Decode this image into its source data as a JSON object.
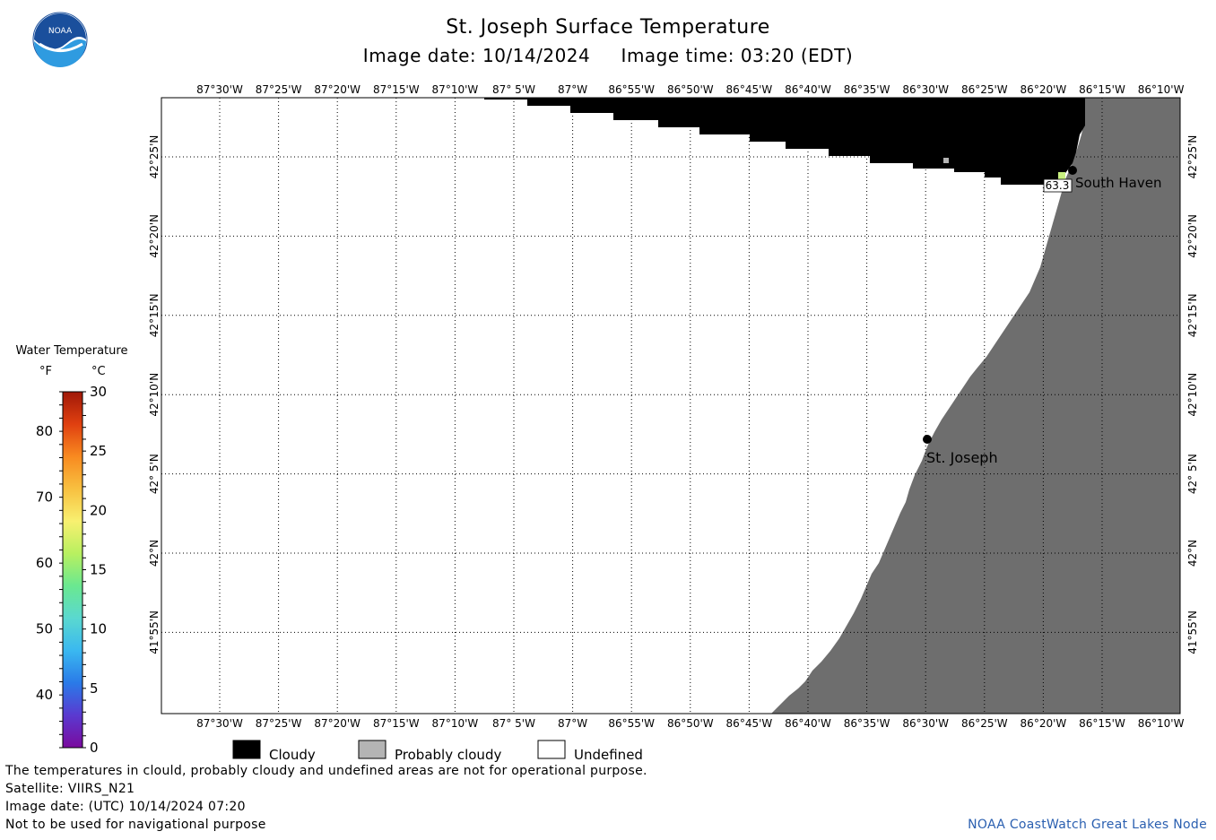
{
  "header": {
    "title": "St. Joseph Surface Temperature",
    "subtitle": "Image date: 10/14/2024     Image time: 03:20 (EDT)"
  },
  "logo": {
    "text": "NOAA",
    "icon": "noaa-logo-icon"
  },
  "map": {
    "lon_labels": [
      "87°30'W",
      "87°25'W",
      "87°20'W",
      "87°15'W",
      "87°10'W",
      "87° 5'W",
      "87°W",
      "86°55'W",
      "86°50'W",
      "86°45'W",
      "86°40'W",
      "86°35'W",
      "86°30'W",
      "86°25'W",
      "86°20'W",
      "86°15'W",
      "86°10'W"
    ],
    "lat_labels": [
      "42°25'N",
      "42°20'N",
      "42°15'N",
      "42°10'N",
      "42° 5'N",
      "42°N",
      "41°55'N"
    ],
    "cities": [
      {
        "name": "South Haven"
      },
      {
        "name": "St. Joseph"
      }
    ],
    "readout": "63.3",
    "colors": {
      "land": "#6e6e6e",
      "cloud": "#000000",
      "undefined": "#ffffff",
      "probably_cloudy": "#b4b4b4",
      "readout_fill": "#c8f080"
    }
  },
  "legend": {
    "title": "Water Temperature",
    "f_unit": "°F",
    "c_unit": "°C",
    "f_ticks": [
      "80",
      "70",
      "60",
      "50",
      "40"
    ],
    "c_ticks": [
      "30",
      "25",
      "20",
      "15",
      "10",
      "5",
      "0"
    ],
    "colorbar": [
      "#7a0a9e",
      "#5a3ad0",
      "#2a7ae8",
      "#3ab8f0",
      "#5ad8d0",
      "#6ae890",
      "#b8f060",
      "#f8f070",
      "#f8c040",
      "#f88a20",
      "#e04010",
      "#a01808"
    ]
  },
  "key": {
    "cloudy": "Cloudy",
    "probably_cloudy": "Probably cloudy",
    "undefined": "Undefined"
  },
  "footer": {
    "line1": "The temperatures in clould, probably cloudy and undefined areas are not for operational purpose.",
    "line2": "Satellite: VIIRS_N21",
    "line3": "Image date: (UTC) 10/14/2024  07:20",
    "line4": "Not to be used for navigational purpose",
    "credit": "NOAA CoastWatch Great Lakes Node"
  }
}
